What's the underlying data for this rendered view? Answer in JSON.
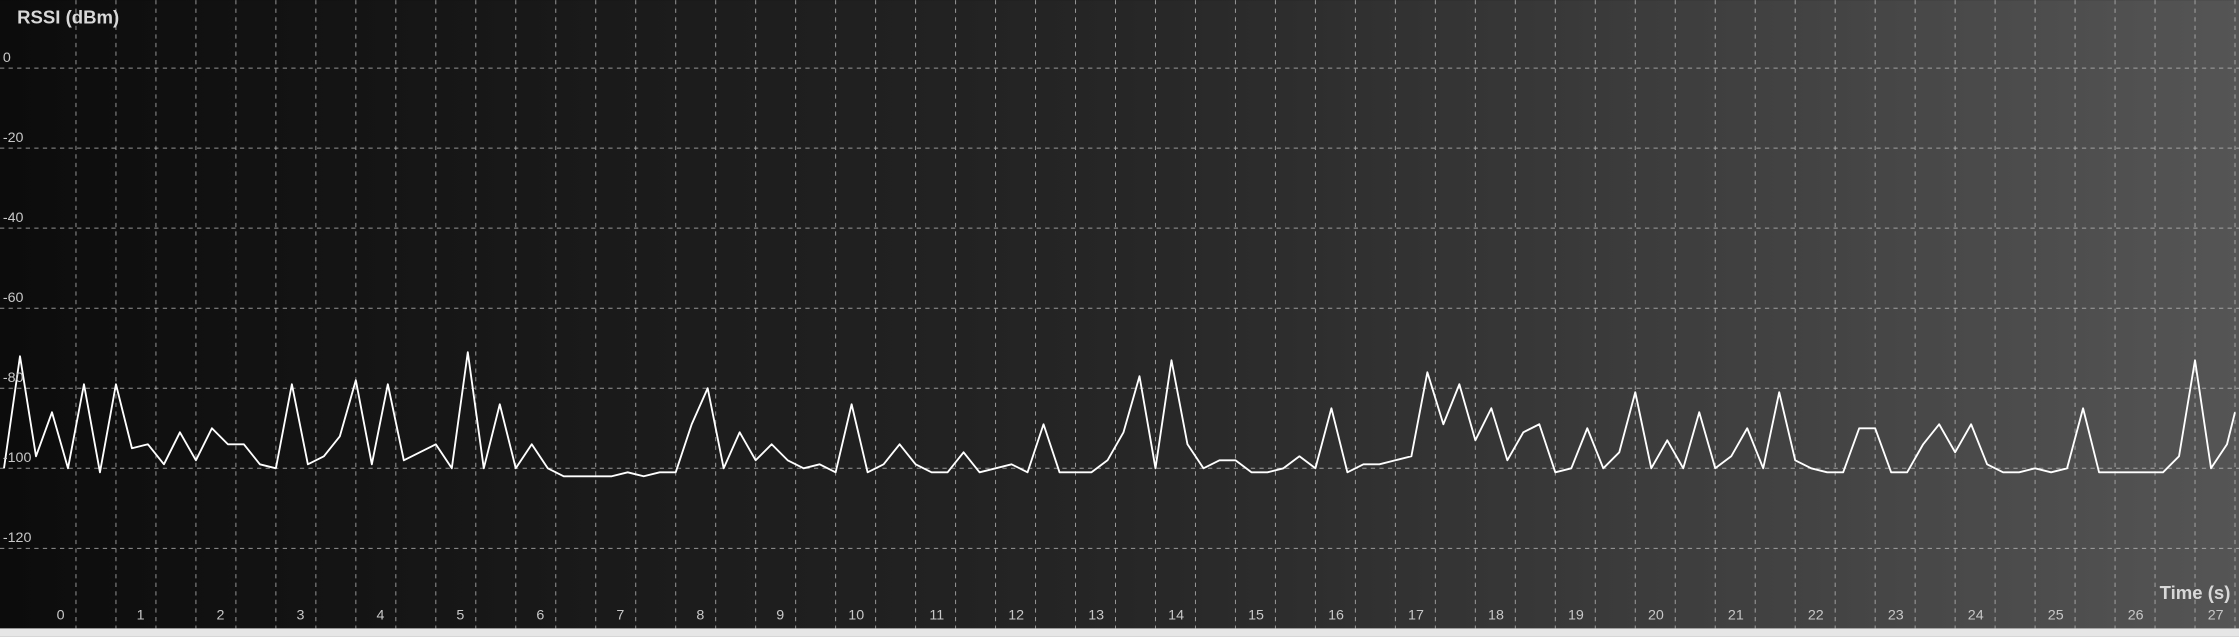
{
  "chart_data": {
    "type": "line",
    "y_label": "RSSI (dBm)",
    "x_label": "Time (s)",
    "color": "#ffffff",
    "grid": true,
    "minor_x_grid": true,
    "xlim": [
      -0.95,
      27.05
    ],
    "ylim": [
      -140,
      17
    ],
    "xticks": [
      0,
      1,
      2,
      3,
      4,
      5,
      6,
      7,
      8,
      9,
      10,
      11,
      12,
      13,
      14,
      15,
      16,
      17,
      18,
      19,
      20,
      21,
      22,
      23,
      24,
      25,
      26,
      27
    ],
    "yticks": [
      0,
      -20,
      -40,
      -60,
      -80,
      -100,
      -120
    ],
    "x": [
      -0.9,
      -0.7,
      -0.5,
      -0.3,
      -0.1,
      0.1,
      0.3,
      0.5,
      0.7,
      0.9,
      1.1,
      1.3,
      1.5,
      1.7,
      1.9,
      2.1,
      2.3,
      2.5,
      2.7,
      2.9,
      3.1,
      3.3,
      3.5,
      3.7,
      3.9,
      4.1,
      4.3,
      4.5,
      4.7,
      4.9,
      5.1,
      5.3,
      5.5,
      5.7,
      5.9,
      6.1,
      6.3,
      6.5,
      6.7,
      6.9,
      7.1,
      7.3,
      7.5,
      7.7,
      7.9,
      8.1,
      8.3,
      8.5,
      8.7,
      8.9,
      9.1,
      9.3,
      9.5,
      9.7,
      9.9,
      10.1,
      10.3,
      10.5,
      10.7,
      10.9,
      11.1,
      11.3,
      11.5,
      11.7,
      11.9,
      12.1,
      12.3,
      12.5,
      12.7,
      12.9,
      13.1,
      13.3,
      13.5,
      13.7,
      13.9,
      14.1,
      14.3,
      14.5,
      14.7,
      14.9,
      15.1,
      15.3,
      15.5,
      15.7,
      15.9,
      16.1,
      16.3,
      16.5,
      16.7,
      16.9,
      17.1,
      17.3,
      17.5,
      17.7,
      17.9,
      18.1,
      18.3,
      18.5,
      18.7,
      18.9,
      19.1,
      19.3,
      19.5,
      19.7,
      19.9,
      20.1,
      20.3,
      20.5,
      20.7,
      20.9,
      21.1,
      21.3,
      21.5,
      21.7,
      21.9,
      22.1,
      22.3,
      22.5,
      22.7,
      22.9,
      23.1,
      23.3,
      23.5,
      23.7,
      23.9,
      24.1,
      24.3,
      24.5,
      24.7,
      24.9,
      25.1,
      25.3,
      25.5,
      25.7,
      25.9,
      26.1,
      26.3,
      26.5,
      26.7,
      26.9,
      27.0
    ],
    "values": [
      -100,
      -72,
      -97,
      -86,
      -100,
      -79,
      -101,
      -79,
      -95,
      -94,
      -99,
      -91,
      -98,
      -90,
      -94,
      -94,
      -99,
      -100,
      -79,
      -99,
      -97,
      -92,
      -78,
      -99,
      -79,
      -98,
      -96,
      -94,
      -100,
      -71,
      -100,
      -84,
      -100,
      -94,
      -100,
      -102,
      -102,
      -102,
      -102,
      -101,
      -102,
      -101,
      -101,
      -89,
      -80,
      -100,
      -91,
      -98,
      -94,
      -98,
      -100,
      -99,
      -101,
      -84,
      -101,
      -99,
      -94,
      -99,
      -101,
      -101,
      -96,
      -101,
      -100,
      -99,
      -101,
      -89,
      -101,
      -101,
      -101,
      -98,
      -91,
      -77,
      -100,
      -73,
      -94,
      -100,
      -98,
      -98,
      -101,
      -101,
      -100,
      -97,
      -100,
      -85,
      -101,
      -99,
      -99,
      -98,
      -97,
      -76,
      -89,
      -79,
      -93,
      -85,
      -98,
      -91,
      -89,
      -101,
      -100,
      -90,
      -100,
      -96,
      -81,
      -100,
      -93,
      -100,
      -86,
      -100,
      -97,
      -90,
      -100,
      -81,
      -98,
      -100,
      -101,
      -101,
      -90,
      -90,
      -101,
      -101,
      -94,
      -89,
      -96,
      -89,
      -99,
      -101,
      -101,
      -100,
      -101,
      -100,
      -85,
      -101,
      -101,
      -101,
      -101,
      -101,
      -97,
      -73,
      -100,
      -94,
      -86
    ]
  }
}
